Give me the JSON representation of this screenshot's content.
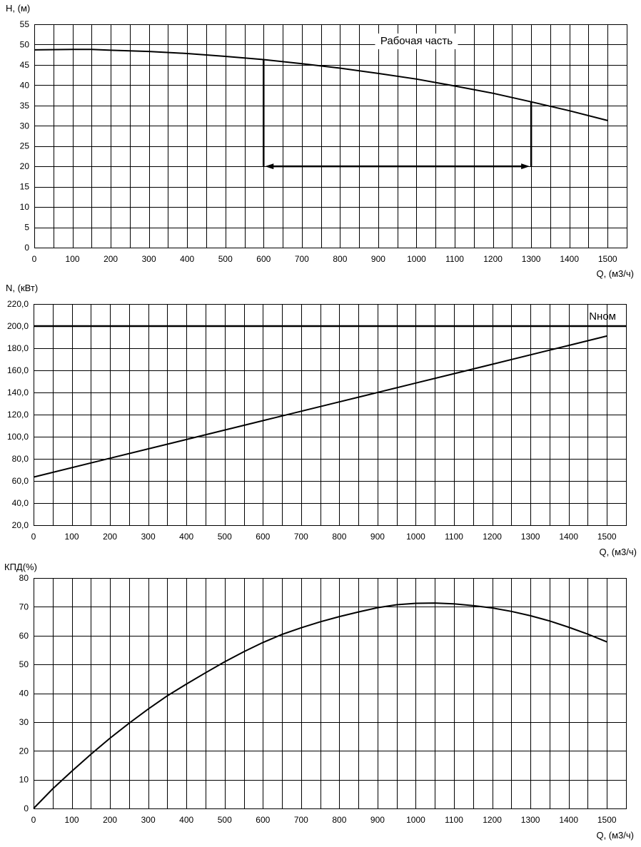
{
  "chart_data": [
    {
      "type": "line",
      "ylabel": "H, (м)",
      "xlabel": "Q, (м3/ч)",
      "xlim": [
        0,
        1550
      ],
      "ylim": [
        0,
        55
      ],
      "x_ticks": [
        0,
        100,
        200,
        300,
        400,
        500,
        600,
        700,
        800,
        900,
        1000,
        1100,
        1200,
        1300,
        1400,
        1500
      ],
      "y_ticks": [
        0,
        5,
        10,
        15,
        20,
        25,
        30,
        35,
        40,
        45,
        50,
        55
      ],
      "y_tick_labels": [
        "0",
        "5",
        "10",
        "15",
        "20",
        "25",
        "30",
        "35",
        "40",
        "45",
        "50",
        "55"
      ],
      "grid": true,
      "series": [
        {
          "x": [
            0,
            100,
            150,
            200,
            300,
            400,
            500,
            600,
            700,
            800,
            900,
            1000,
            1100,
            1200,
            1300,
            1400,
            1500
          ],
          "values": [
            48.7,
            48.8,
            48.8,
            48.6,
            48.3,
            47.8,
            47.1,
            46.3,
            45.3,
            44.2,
            42.9,
            41.5,
            39.8,
            38.0,
            35.9,
            33.7,
            31.3
          ]
        }
      ],
      "annotation": {
        "text": "Рабочая часть",
        "range": [
          600,
          1300
        ],
        "arrow_y": 20
      }
    },
    {
      "type": "line",
      "ylabel": "N, (кВт)",
      "xlabel": "Q, (м3/ч)",
      "xlim": [
        0,
        1550
      ],
      "ylim": [
        20,
        220
      ],
      "x_ticks": [
        0,
        100,
        200,
        300,
        400,
        500,
        600,
        700,
        800,
        900,
        1000,
        1100,
        1200,
        1300,
        1400,
        1500
      ],
      "y_ticks": [
        20,
        40,
        60,
        80,
        100,
        120,
        140,
        160,
        180,
        200,
        220
      ],
      "y_tick_labels": [
        "20,0",
        "40,0",
        "60,0",
        "80,0",
        "100,0",
        "120,0",
        "140,0",
        "160,0",
        "180,0",
        "200,0",
        "220,0"
      ],
      "grid": true,
      "series": [
        {
          "x": [
            0,
            200,
            400,
            600,
            800,
            1000,
            1200,
            1400,
            1500
          ],
          "values": [
            63.5,
            80.5,
            97.5,
            114.5,
            131.5,
            148.5,
            165.5,
            182.5,
            191.0
          ]
        }
      ],
      "reference_line": {
        "label": "Nном",
        "value": 200
      }
    },
    {
      "type": "line",
      "ylabel": "КПД(%)",
      "xlabel": "Q, (м3/ч)",
      "xlim": [
        0,
        1550
      ],
      "ylim": [
        0,
        80
      ],
      "x_ticks": [
        0,
        100,
        200,
        300,
        400,
        500,
        600,
        700,
        800,
        900,
        1000,
        1100,
        1200,
        1300,
        1400,
        1500
      ],
      "y_ticks": [
        0,
        10,
        20,
        30,
        40,
        50,
        60,
        70,
        80
      ],
      "y_tick_labels": [
        "0",
        "10",
        "20",
        "30",
        "40",
        "50",
        "60",
        "70",
        "80"
      ],
      "grid": true,
      "series": [
        {
          "x": [
            0,
            50,
            100,
            150,
            200,
            250,
            300,
            350,
            400,
            450,
            500,
            550,
            600,
            650,
            700,
            750,
            800,
            850,
            900,
            950,
            1000,
            1050,
            1100,
            1150,
            1200,
            1250,
            1300,
            1350,
            1400,
            1450,
            1500
          ],
          "values": [
            0,
            6.8,
            12.9,
            18.8,
            24.4,
            29.6,
            34.5,
            39.1,
            43.2,
            47.1,
            50.9,
            54.4,
            57.6,
            60.4,
            62.7,
            64.8,
            66.6,
            68.2,
            69.7,
            70.7,
            71.2,
            71.3,
            71.0,
            70.4,
            69.6,
            68.4,
            66.9,
            65.1,
            62.9,
            60.5,
            57.8
          ]
        }
      ]
    }
  ]
}
